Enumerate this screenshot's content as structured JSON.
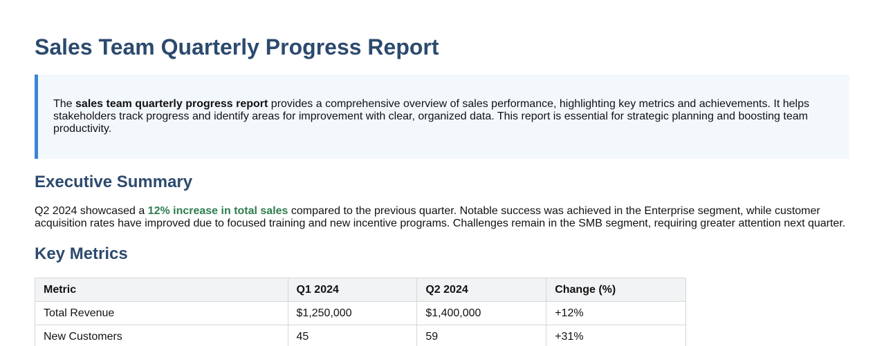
{
  "report": {
    "title": "Sales Team Quarterly Progress Report",
    "intro": {
      "prefix": "The ",
      "bold": "sales team quarterly progress report",
      "suffix": " provides a comprehensive overview of sales performance, highlighting key metrics and achievements. It helps stakeholders track progress and identify areas for improvement with clear, organized data. This report is essential for strategic planning and boosting team productivity."
    },
    "executive_summary": {
      "heading": "Executive Summary",
      "prefix": "Q2 2024 showcased a ",
      "highlight": "12% increase in total sales",
      "suffix": " compared to the previous quarter. Notable success was achieved in the Enterprise segment, while customer acquisition rates have improved due to focused training and new incentive programs. Challenges remain in the SMB segment, requiring greater attention next quarter."
    },
    "key_metrics": {
      "heading": "Key Metrics",
      "columns": [
        "Metric",
        "Q1 2024",
        "Q2 2024",
        "Change (%)"
      ],
      "rows": [
        [
          "Total Revenue",
          "$1,250,000",
          "$1,400,000",
          "+12%"
        ],
        [
          "New Customers",
          "45",
          "59",
          "+31%"
        ]
      ]
    }
  },
  "colors": {
    "heading": "#2c4a6e",
    "callout_border": "#3a86d6",
    "callout_background": "#f3f8fd",
    "highlight": "#2e7d4f"
  }
}
